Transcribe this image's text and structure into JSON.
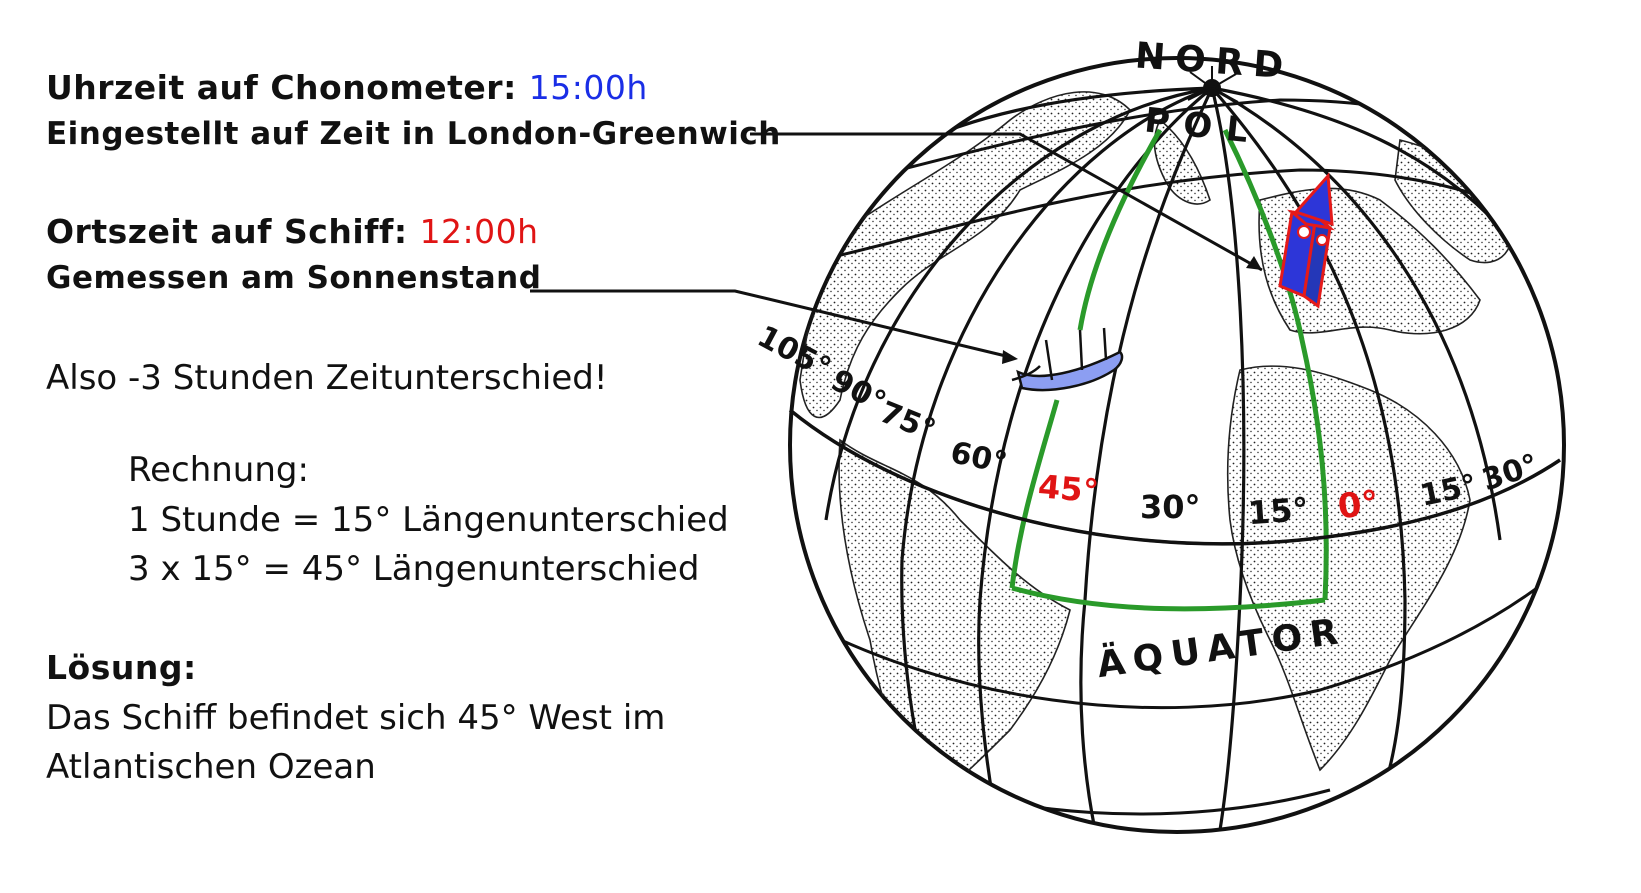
{
  "colors": {
    "chronometer_time": "#1a2ee6",
    "ship_time": "#e01414",
    "highlight_meridian": "#2a9a2a",
    "red_label": "#e01414",
    "ship_hull": "#8c9ef2",
    "tower_blue": "#2d36d8",
    "tower_red": "#e51a1a"
  },
  "text": {
    "chronometer_label": "Uhrzeit auf Chonometer:",
    "chronometer_time": "15:00h",
    "chronometer_note": "Eingestellt auf Zeit in London-Greenwich",
    "ship_label": "Ortszeit auf Schiff:",
    "ship_time": "12:00h",
    "ship_note": "Gemessen am Sonnenstand",
    "difference": "Also -3 Stunden Zeitunterschied!",
    "calc_title": "Rechnung:",
    "calc_line1": "1 Stunde = 15° Längenunterschied",
    "calc_line2": "3 x 15° = 45° Längenunterschied",
    "solution_title": "Lösung:",
    "solution_line1": "Das Schiff befindet sich 45° West im",
    "solution_line2": "Atlantischen Ozean"
  },
  "globe": {
    "north_label": "NORD",
    "pole_label": "POL",
    "equator_label": "ÄQUATOR",
    "meridians": {
      "m105": "105°",
      "m90": "90°",
      "m75": "75°",
      "m60": "60°",
      "m45": "45°",
      "m30": "30°",
      "m15w": "15°",
      "m0": "0°",
      "m15e": "15°",
      "m30e": "30°"
    },
    "icons": [
      "ship-icon",
      "big-ben-tower-icon"
    ]
  }
}
